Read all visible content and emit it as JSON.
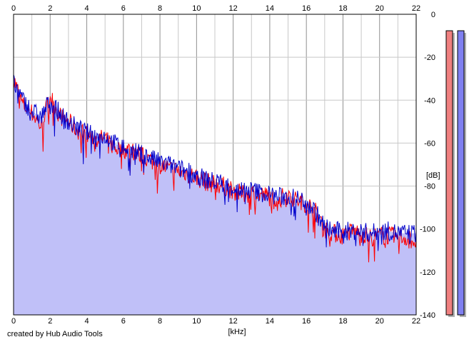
{
  "credit": "created by Hub Audio Tools",
  "colors": {
    "fill": "#c0c0f8",
    "left_channel": "#ff0000",
    "right_channel": "#0000cc",
    "grid_major": "#909090",
    "grid_minor": "#c8c8c8",
    "meter_left": "#f08080",
    "meter_right": "#8080f0"
  },
  "chart_data": {
    "type": "line",
    "title": "",
    "xlabel": "[kHz]",
    "ylabel": "[dB]",
    "xlim": [
      0,
      22
    ],
    "ylim": [
      -140,
      0
    ],
    "x_ticks": [
      "0",
      "2",
      "4",
      "6",
      "8",
      "10",
      "12",
      "14",
      "16",
      "18",
      "20",
      "22"
    ],
    "y_ticks": [
      "0",
      "-20",
      "-40",
      "-60",
      "-80",
      "-100",
      "-120",
      "-140"
    ],
    "grid": true,
    "level_meters": [
      {
        "channel": "left",
        "level_db": -5
      },
      {
        "channel": "right",
        "level_db": -5
      }
    ],
    "series": [
      {
        "color": "#ff0000",
        "x": [
          0,
          0.5,
          1,
          1.5,
          2,
          2.5,
          3,
          3.5,
          4,
          4.5,
          5,
          5.5,
          6,
          6.5,
          7,
          7.5,
          8,
          8.5,
          9,
          9.5,
          10,
          10.5,
          11,
          11.5,
          12,
          12.5,
          13,
          13.5,
          14,
          14.5,
          15,
          15.5,
          16,
          16.5,
          17,
          17.5,
          18,
          18.5,
          19,
          19.5,
          20,
          20.5,
          21,
          21.5,
          22
        ],
        "values": [
          -30,
          -42,
          -46,
          -52,
          -38,
          -47,
          -50,
          -54,
          -56,
          -58,
          -58,
          -62,
          -63,
          -63,
          -66,
          -68,
          -70,
          -72,
          -73,
          -74,
          -76,
          -78,
          -79,
          -80,
          -82,
          -84,
          -83,
          -84,
          -85,
          -86,
          -84,
          -87,
          -88,
          -92,
          -100,
          -102,
          -103,
          -101,
          -102,
          -104,
          -103,
          -103,
          -104,
          -104,
          -106
        ]
      },
      {
        "color": "#0000cc",
        "x": [
          0,
          0.5,
          1,
          1.5,
          2,
          2.5,
          3,
          3.5,
          4,
          4.5,
          5,
          5.5,
          6,
          6.5,
          7,
          7.5,
          8,
          8.5,
          9,
          9.5,
          10,
          10.5,
          11,
          11.5,
          12,
          12.5,
          13,
          13.5,
          14,
          14.5,
          15,
          15.5,
          16,
          16.5,
          17,
          17.5,
          18,
          18.5,
          19,
          19.5,
          20,
          20.5,
          21,
          21.5,
          22
        ],
        "values": [
          -32,
          -40,
          -45,
          -48,
          -40,
          -46,
          -50,
          -53,
          -55,
          -57,
          -57,
          -60,
          -62,
          -64,
          -65,
          -67,
          -69,
          -70,
          -72,
          -73,
          -75,
          -77,
          -78,
          -79,
          -81,
          -82,
          -82,
          -83,
          -84,
          -85,
          -85,
          -86,
          -87,
          -92,
          -99,
          -101,
          -101,
          -101,
          -101,
          -102,
          -101,
          -101,
          -102,
          -102,
          -102
        ]
      }
    ]
  }
}
